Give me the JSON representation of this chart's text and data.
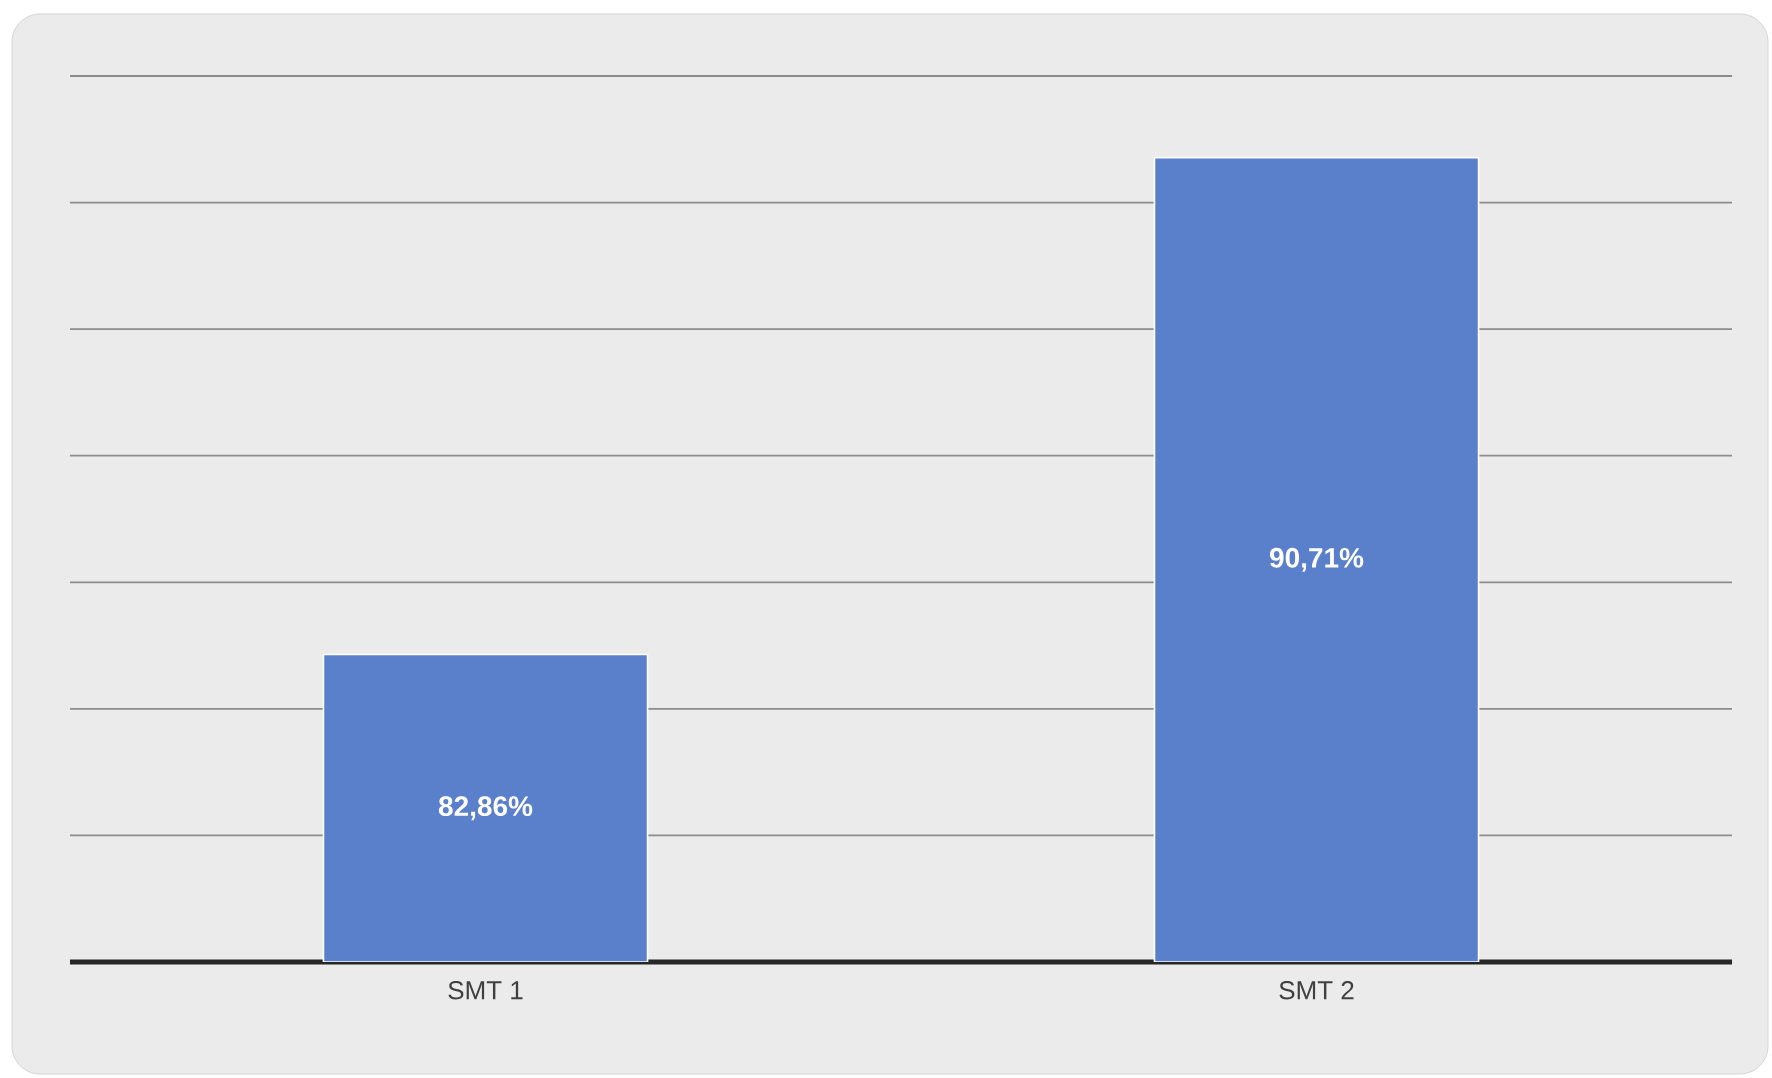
{
  "chart_data": {
    "type": "bar",
    "categories": [
      "SMT 1",
      "SMT 2"
    ],
    "values": [
      82.86,
      90.71
    ],
    "value_labels": [
      "82,86%",
      "90,71%"
    ],
    "color": "#5a7fcb",
    "ylim": [
      78,
      92
    ],
    "yticks": [
      {
        "value": 78,
        "label": null
      },
      {
        "value": 80,
        "label": null
      },
      {
        "value": 82,
        "label": null
      },
      {
        "value": 84,
        "label": null
      },
      {
        "value": 86,
        "label": null
      },
      {
        "value": 88,
        "label": null
      },
      {
        "value": 90,
        "label": null
      },
      {
        "value": 92,
        "label": null
      }
    ],
    "grid": "y",
    "tick_labels": "x"
  }
}
